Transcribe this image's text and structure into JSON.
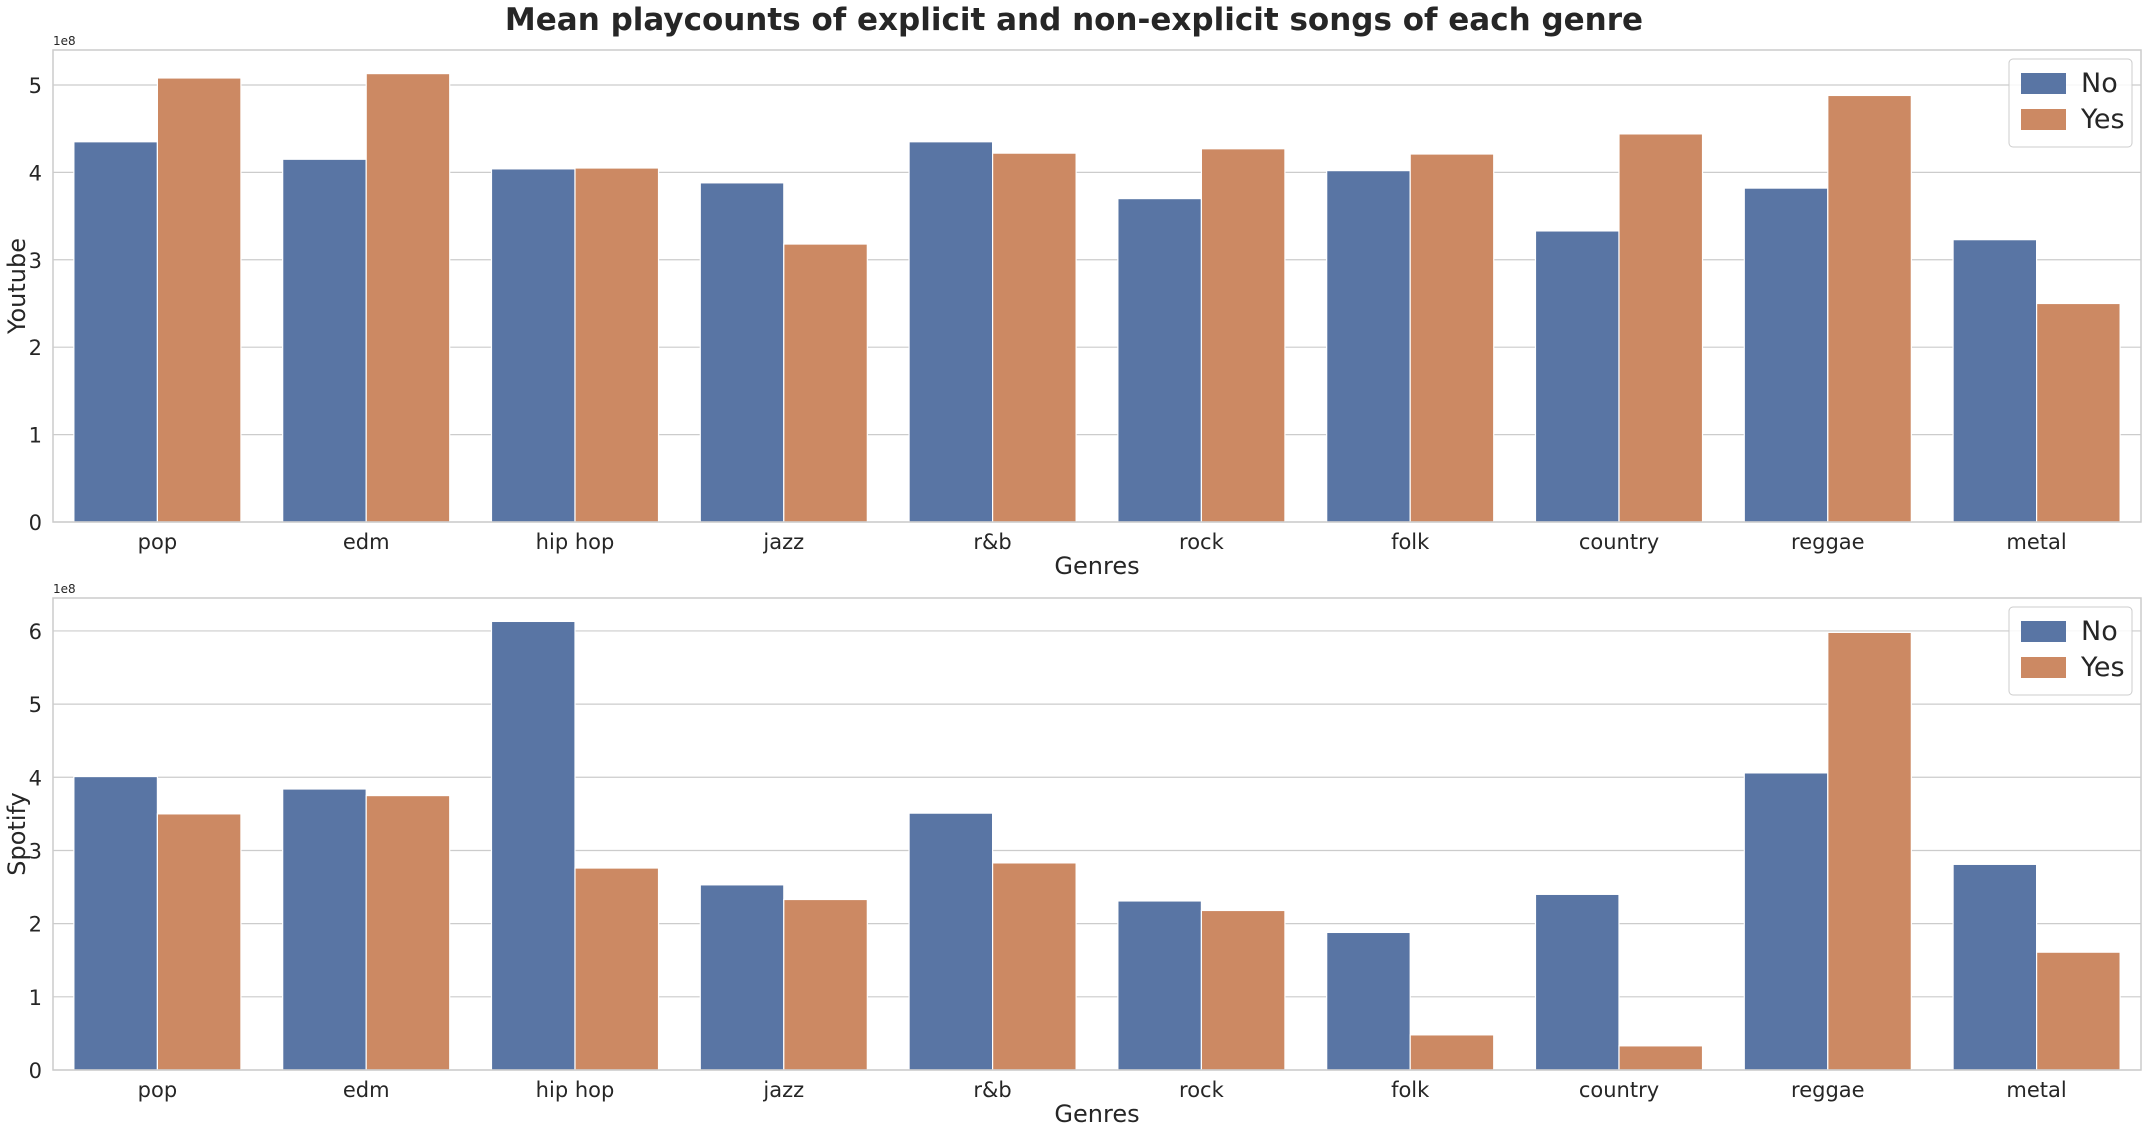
{
  "figure": {
    "title": "Mean playcounts of explicit and non-explicit songs of each genre"
  },
  "chart_data": [
    {
      "type": "bar",
      "title": "",
      "xlabel": "Genres",
      "ylabel": "Youtube",
      "offset_text": "1e8",
      "scale": 100000000,
      "ylim": [
        0,
        5.4
      ],
      "yticks": [
        0,
        1,
        2,
        3,
        4,
        5
      ],
      "ytick_labels": [
        "0",
        "1",
        "2",
        "3",
        "4",
        "5"
      ],
      "grid": true,
      "legend_position": "top-right",
      "categories": [
        "pop",
        "edm",
        "hip hop",
        "jazz",
        "r&b",
        "rock",
        "folk",
        "country",
        "reggae",
        "metal"
      ],
      "series": [
        {
          "name": "No",
          "color": "#5975a4",
          "values": [
            4.35,
            4.15,
            4.04,
            3.88,
            4.35,
            3.7,
            4.02,
            3.33,
            3.82,
            3.23
          ]
        },
        {
          "name": "Yes",
          "color": "#cc8963",
          "values": [
            5.08,
            5.13,
            4.05,
            3.18,
            4.22,
            4.27,
            4.21,
            4.44,
            4.88,
            2.5
          ]
        }
      ]
    },
    {
      "type": "bar",
      "title": "",
      "xlabel": "Genres",
      "ylabel": "Spotify",
      "offset_text": "1e8",
      "scale": 100000000,
      "ylim": [
        0,
        6.45
      ],
      "yticks": [
        0,
        1,
        2,
        3,
        4,
        5,
        6
      ],
      "ytick_labels": [
        "0",
        "1",
        "2",
        "3",
        "4",
        "5",
        "6"
      ],
      "grid": true,
      "legend_position": "top-right",
      "categories": [
        "pop",
        "edm",
        "hip hop",
        "jazz",
        "r&b",
        "rock",
        "folk",
        "country",
        "reggae",
        "metal"
      ],
      "series": [
        {
          "name": "No",
          "color": "#5975a4",
          "values": [
            4.01,
            3.84,
            6.13,
            2.53,
            3.51,
            2.31,
            1.88,
            2.4,
            4.06,
            2.81
          ]
        },
        {
          "name": "Yes",
          "color": "#cc8963",
          "values": [
            3.5,
            3.75,
            2.76,
            2.33,
            2.83,
            2.18,
            0.48,
            0.33,
            5.98,
            1.61
          ]
        }
      ]
    }
  ]
}
